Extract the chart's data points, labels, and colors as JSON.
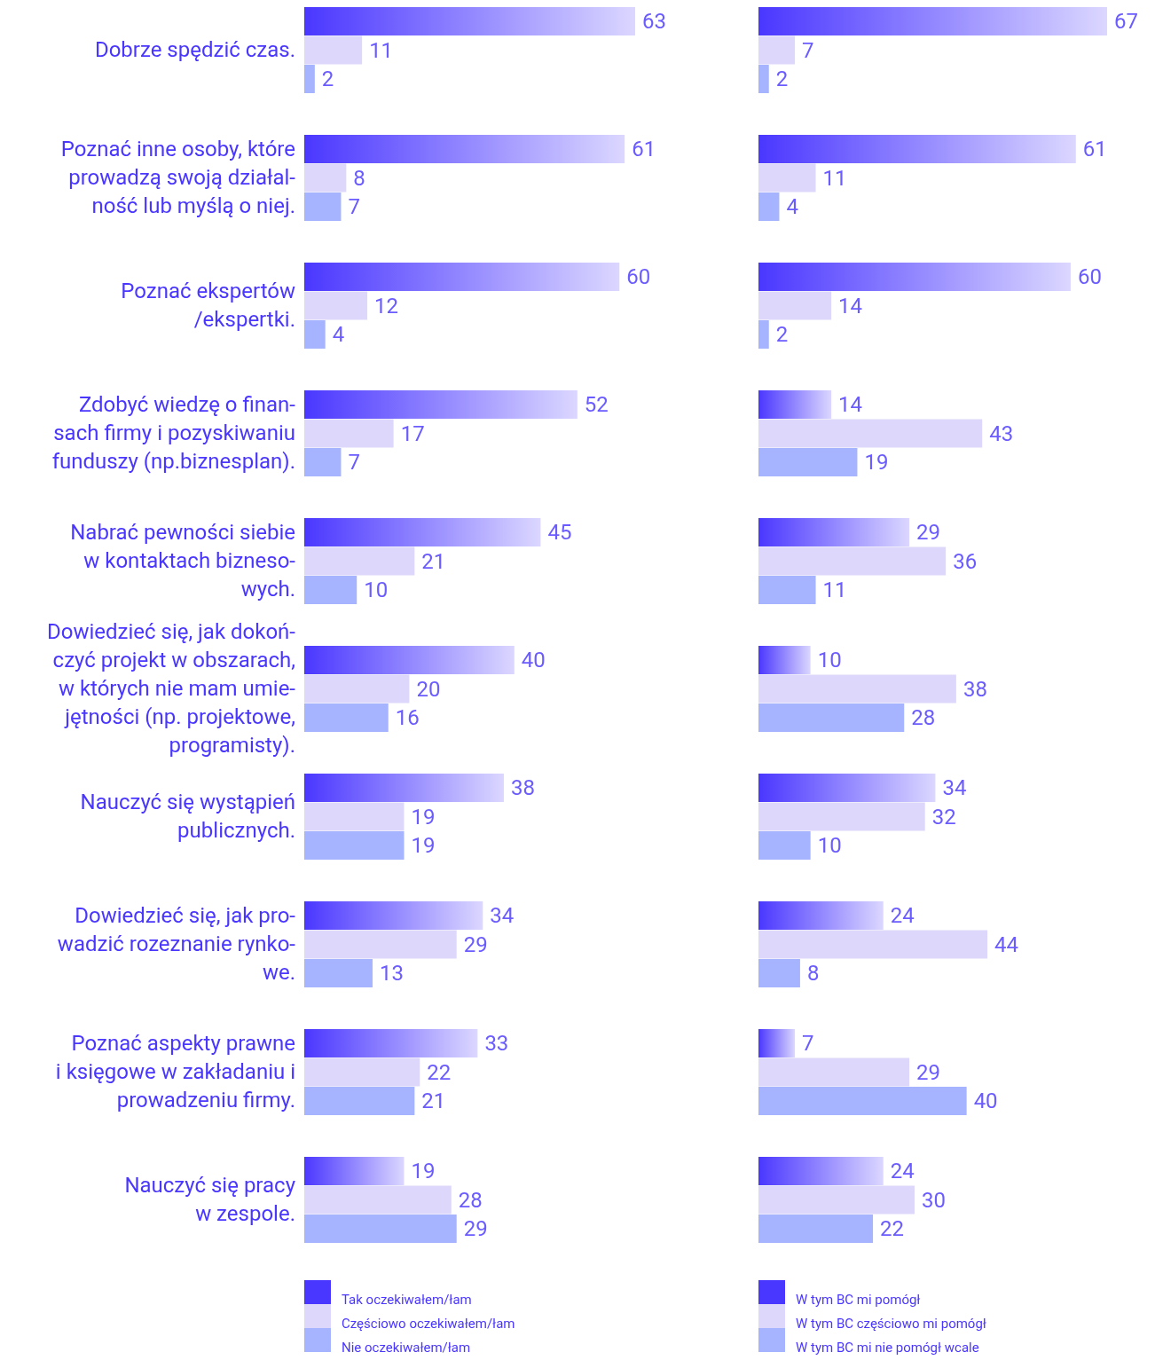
{
  "chart_data": [
    {
      "type": "bar",
      "orientation": "horizontal",
      "tick_labels": "y",
      "data_labels": true,
      "legend": "bottom",
      "grid": false,
      "categories": [
        "Dobrze spędzić czas.",
        "Poznać inne osoby, które\nprowadzą swoją działal-\nność lub myślą o niej.",
        "Poznać ekspertów\n/ekspertki.",
        "Zdobyć wiedzę o finan-\nsach firmy i pozyskiwaniu\nfunduszy (np.biznesplan).",
        "Nabrać pewności siebie\nw kontaktach bizneso-\nwych.",
        "Dowiedzieć się, jak dokoń-\nczyć projekt w obszarach,\nw których nie mam umie-\njętności (np. projektowe,\nprogramisty).",
        "Nauczyć się wystąpień\npublicznych.",
        "Dowiedzieć się, jak pro-\nwadzić rozeznanie rynko-\nwe.",
        "Poznać aspekty prawne\ni księgowe w zakładaniu i\nprowadzeniu firmy.",
        "Nauczyć się pracy\nw zespole."
      ],
      "series": [
        {
          "name": "Tak oczekiwałem/łam",
          "color": "#4a37ff",
          "values": [
            63,
            61,
            60,
            52,
            45,
            40,
            38,
            34,
            33,
            19
          ]
        },
        {
          "name": "Częściowo oczekiwałem/łam",
          "color": "#ddd8fb",
          "values": [
            11,
            8,
            12,
            17,
            21,
            20,
            19,
            29,
            22,
            28
          ]
        },
        {
          "name": "Nie oczekiwałem/łam",
          "color": "#a6b3ff",
          "values": [
            2,
            7,
            4,
            7,
            10,
            16,
            19,
            13,
            21,
            29
          ]
        }
      ]
    },
    {
      "type": "bar",
      "orientation": "horizontal",
      "tick_labels": false,
      "data_labels": true,
      "legend": "bottom",
      "grid": false,
      "categories": [
        null,
        null,
        null,
        null,
        null,
        null,
        null,
        null,
        null,
        null
      ],
      "series": [
        {
          "name": "W tym BC mi pomógł",
          "color": "#4a37ff",
          "values": [
            67,
            61,
            60,
            14,
            29,
            10,
            34,
            24,
            7,
            24
          ]
        },
        {
          "name": "W tym BC częściowo mi pomógł",
          "color": "#ddd8fb",
          "values": [
            7,
            11,
            14,
            43,
            36,
            38,
            32,
            44,
            29,
            30
          ]
        },
        {
          "name": "W tym BC mi nie pomógł wcale",
          "color": "#a6b3ff",
          "values": [
            2,
            4,
            2,
            19,
            11,
            28,
            10,
            8,
            40,
            22
          ]
        }
      ]
    }
  ]
}
